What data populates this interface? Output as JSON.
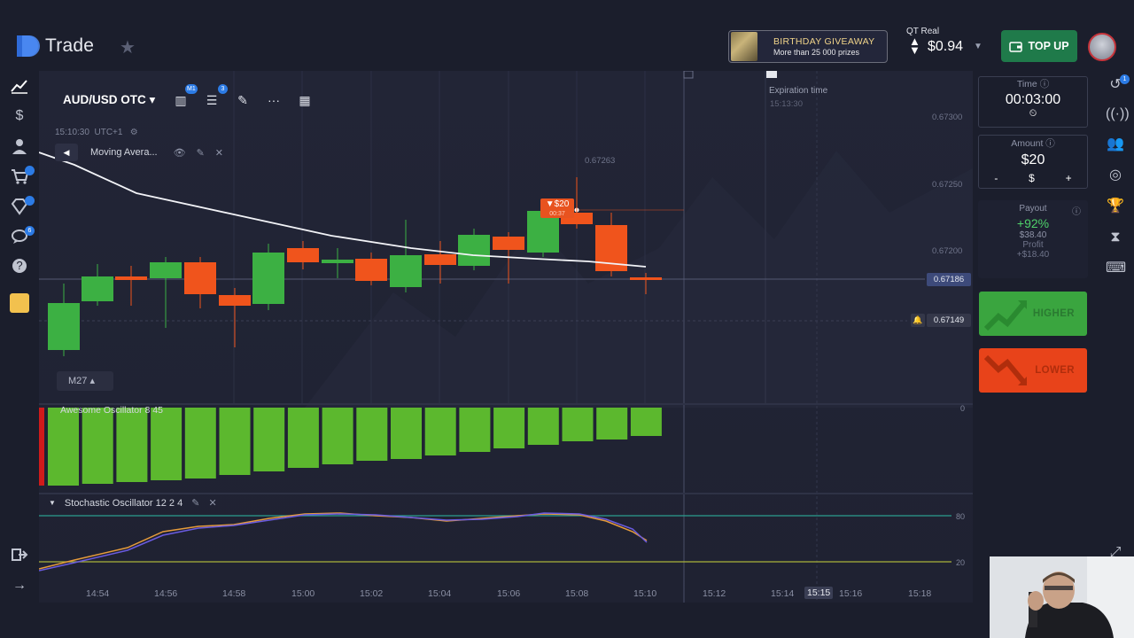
{
  "app": {
    "logo_text": "Trade"
  },
  "header": {
    "giveaway": {
      "title": "BIRTHDAY GIVEAWAY",
      "subtitle": "More than 25 000 prizes"
    },
    "account": {
      "type_label": "QT Real",
      "balance": "$0.94"
    },
    "topup_label": "TOP UP"
  },
  "sidebar": {
    "badges": {
      "cart": "",
      "diamond": "",
      "chat": "6"
    }
  },
  "chart": {
    "symbol": "AUD/USD OTC",
    "timeframe_badge": "M1",
    "indicators_badge": "3",
    "server_time": "15:10:30",
    "timezone": "UTC+1",
    "indicator_name": "Moving Avera...",
    "timeframe_select": "M27",
    "price_labels": [
      "0.67300",
      "0.67250",
      "0.67200"
    ],
    "current_price": "0.67186",
    "alert_price": "0.67149",
    "high_label": "0.67263",
    "expiration_label": "Expiration time",
    "expiration_time": "15:13:30",
    "trade_marker": {
      "amount": "▼$20",
      "timer": "00:37"
    },
    "awesome_osc": {
      "title": "Awesome Oscillator 8 45",
      "scale_zero": "0"
    },
    "stochastic": {
      "title": "Stochastic Oscillator 12 2 4",
      "upper": "80",
      "lower": "20"
    },
    "x_axis": [
      "14:54",
      "14:56",
      "14:58",
      "15:00",
      "15:02",
      "15:04",
      "15:06",
      "15:08",
      "15:10",
      "15:12",
      "15:14",
      "15:15",
      "15:16",
      "15:18"
    ],
    "colors": {
      "up": "#3cb043",
      "down": "#f0541c",
      "osc": "#5cb82e"
    }
  },
  "trade_panel": {
    "time_label": "Time",
    "time_value": "00:03:00",
    "amount_label": "Amount",
    "amount_value": "$20",
    "minus": "-",
    "currency": "$",
    "plus": "+",
    "payout_label": "Payout",
    "payout_percent": "+92%",
    "payout_amount": "$38.40",
    "profit_label": "Profit",
    "profit_amount": "+$18.40",
    "higher_label": "HIGHER",
    "lower_label": "LOWER"
  },
  "rightnav": {
    "history_badge": "1"
  }
}
